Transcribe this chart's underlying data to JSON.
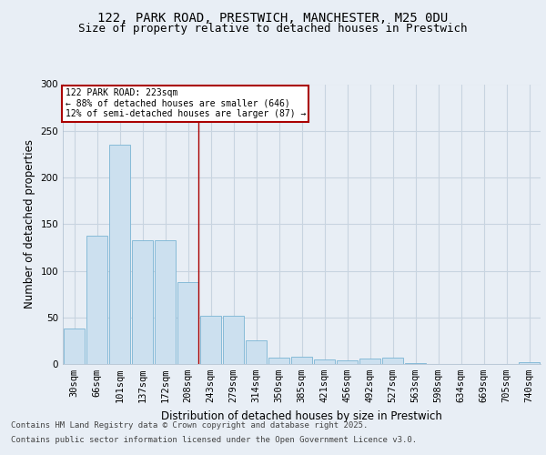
{
  "title_line1": "122, PARK ROAD, PRESTWICH, MANCHESTER, M25 0DU",
  "title_line2": "Size of property relative to detached houses in Prestwich",
  "xlabel": "Distribution of detached houses by size in Prestwich",
  "ylabel": "Number of detached properties",
  "footer_line1": "Contains HM Land Registry data © Crown copyright and database right 2025.",
  "footer_line2": "Contains public sector information licensed under the Open Government Licence v3.0.",
  "categories": [
    "30sqm",
    "66sqm",
    "101sqm",
    "137sqm",
    "172sqm",
    "208sqm",
    "243sqm",
    "279sqm",
    "314sqm",
    "350sqm",
    "385sqm",
    "421sqm",
    "456sqm",
    "492sqm",
    "527sqm",
    "563sqm",
    "598sqm",
    "634sqm",
    "669sqm",
    "705sqm",
    "740sqm"
  ],
  "values": [
    38,
    138,
    235,
    133,
    133,
    88,
    52,
    52,
    25,
    7,
    8,
    5,
    4,
    6,
    7,
    1,
    0,
    0,
    0,
    0,
    2
  ],
  "bar_color": "#cce0ef",
  "bar_edge_color": "#7ab4d4",
  "annotation_box_text": "122 PARK ROAD: 223sqm\n← 88% of detached houses are smaller (646)\n12% of semi-detached houses are larger (87) →",
  "annotation_box_color": "#ffffff",
  "annotation_box_edge_color": "#aa0000",
  "vline_x_index": 5,
  "vline_color": "#aa0000",
  "background_color": "#e8eef5",
  "plot_bg_color": "#e8eef5",
  "ylim": [
    0,
    300
  ],
  "yticks": [
    0,
    50,
    100,
    150,
    200,
    250,
    300
  ],
  "grid_color": "#c8d4e0",
  "title_fontsize": 10,
  "subtitle_fontsize": 9,
  "axis_label_fontsize": 8.5,
  "tick_fontsize": 7.5,
  "footer_fontsize": 6.5
}
